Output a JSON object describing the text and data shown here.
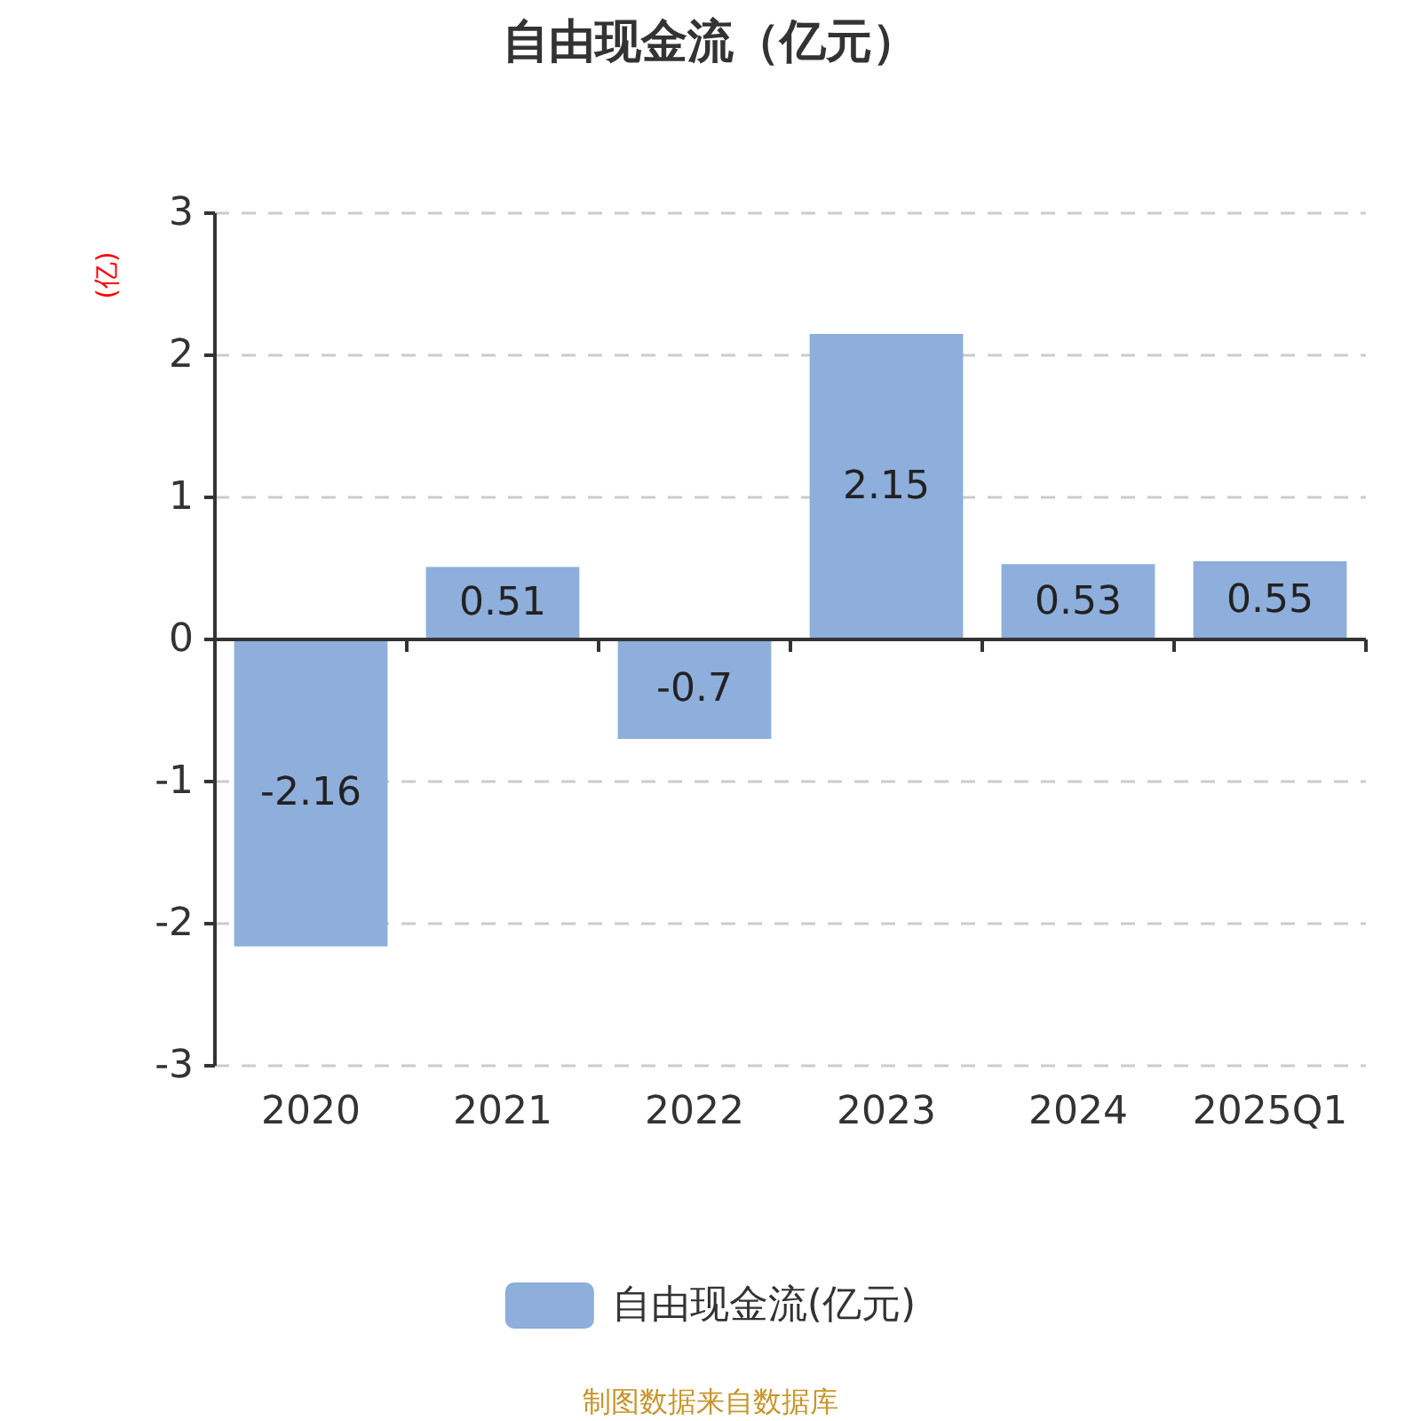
{
  "chart_data": {
    "type": "bar",
    "title": "自由现金流（亿元）",
    "ylabel": "(亿)",
    "categories": [
      "2020",
      "2021",
      "2022",
      "2023",
      "2024",
      "2025Q1"
    ],
    "series": [
      {
        "name": "自由现金流(亿元)",
        "color": "#8eaedb",
        "values": [
          -2.16,
          0.51,
          -0.7,
          2.15,
          0.53,
          0.55
        ]
      }
    ],
    "ylim": [
      -3,
      3
    ],
    "yticks": [
      -3,
      -2,
      -1,
      0,
      1,
      2,
      3
    ],
    "grid": "y",
    "legend": "bottom",
    "data_labels": true,
    "annotations": [
      "制图数据来自数据库"
    ]
  }
}
